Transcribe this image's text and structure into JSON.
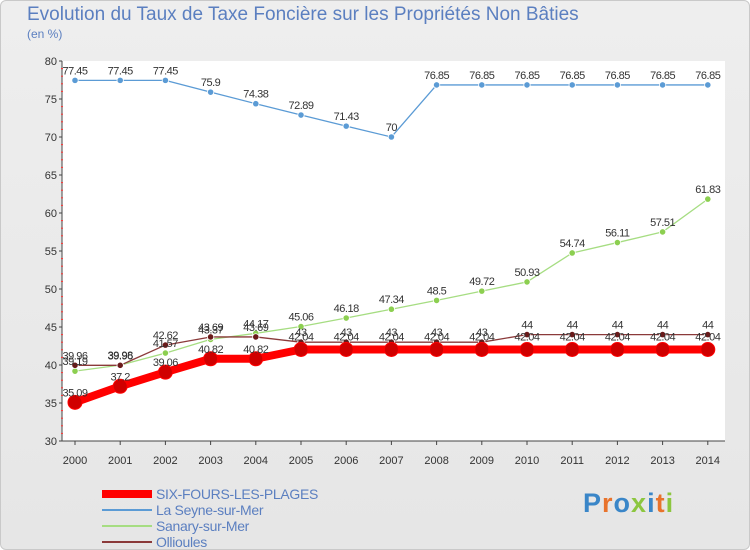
{
  "header": {
    "title": "Evolution du Taux de Taxe Foncière sur les Propriétés Non Bâties",
    "unit": "(en %)"
  },
  "logo": {
    "text": "Proxiti",
    "colors": [
      "#3a86c8",
      "#e8732c",
      "#3a86c8",
      "#8cc63f",
      "#3a86c8",
      "#e8732c",
      "#8cc63f"
    ]
  },
  "chart_data": {
    "type": "line",
    "title": "Evolution du Taux de Taxe Foncière sur les Propriétés Non Bâties",
    "ylabel": "(en %)",
    "xlabel": "",
    "x": [
      "2000",
      "2001",
      "2002",
      "2003",
      "2004",
      "2005",
      "2006",
      "2007",
      "2008",
      "2009",
      "2010",
      "2011",
      "2012",
      "2013",
      "2014"
    ],
    "ylim": [
      30,
      80
    ],
    "yticks": [
      30,
      35,
      40,
      45,
      50,
      55,
      60,
      65,
      70,
      75,
      80
    ],
    "grid": false,
    "legend_position": "bottom-left",
    "series": [
      {
        "name": "SIX-FOURS-LES-PLAGES",
        "color": "#ff0000",
        "marker_color": "#d00000",
        "values": [
          35.09,
          37.2,
          39.06,
          40.82,
          40.82,
          42.04,
          42.04,
          42.04,
          42.04,
          42.04,
          42.04,
          42.04,
          42.04,
          42.04,
          42.04
        ],
        "labels": [
          "35.09",
          "37.2",
          "39.06",
          "40.82",
          "40.82",
          "42.04",
          "42.04",
          "42.04",
          "42.04",
          "42.04",
          "42.04",
          "42.04",
          "42.04",
          "42.04",
          "42.04"
        ]
      },
      {
        "name": "La Seyne-sur-Mer",
        "color": "#5b9bd5",
        "marker_color": "#5b9bd5",
        "values": [
          77.45,
          77.45,
          77.45,
          75.9,
          74.38,
          72.89,
          71.43,
          70,
          76.85,
          76.85,
          76.85,
          76.85,
          76.85,
          76.85,
          76.85
        ],
        "labels": [
          "77.45",
          "77.45",
          "77.45",
          "75.9",
          "74.38",
          "72.89",
          "71.43",
          "70",
          "76.85",
          "76.85",
          "76.85",
          "76.85",
          "76.85",
          "76.85",
          "76.85"
        ]
      },
      {
        "name": "Sanary-sur-Mer",
        "color": "#a6dd82",
        "marker_color": "#8ccf50",
        "values": [
          39.19,
          39.98,
          41.57,
          43.37,
          44.17,
          45.06,
          46.18,
          47.34,
          48.5,
          49.72,
          50.93,
          54.74,
          56.11,
          57.51,
          61.83
        ],
        "labels": [
          "39.19",
          "39.98",
          "41.57",
          "43.37",
          "44.17",
          "45.06",
          "46.18",
          "47.34",
          "48.5",
          "49.72",
          "50.93",
          "54.74",
          "56.11",
          "57.51",
          "61.83"
        ]
      },
      {
        "name": "Ollioules",
        "color": "#8b3a3a",
        "marker_color": "#6a1a1a",
        "values": [
          39.96,
          39.96,
          42.62,
          43.69,
          43.69,
          43,
          43,
          43,
          43,
          43,
          44,
          44,
          44,
          44,
          44
        ],
        "labels": [
          "39.96",
          "39.96",
          "42.62",
          "43.69",
          "43.69",
          "43",
          "43",
          "43",
          "43",
          "43",
          "44",
          "44",
          "44",
          "44",
          "44"
        ]
      }
    ]
  }
}
